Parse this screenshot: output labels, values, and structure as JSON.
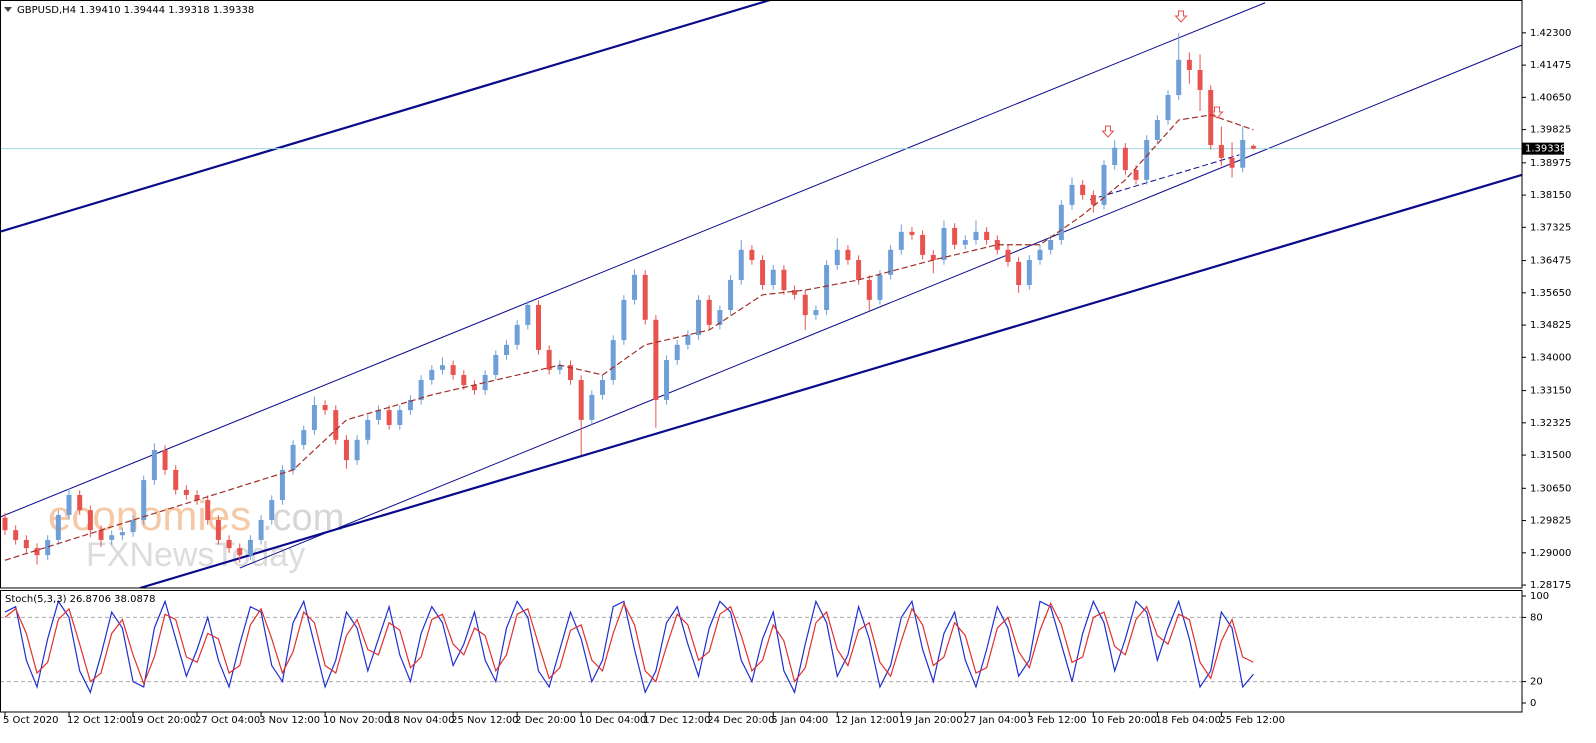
{
  "chart_data": [
    {
      "type": "candlestick",
      "title": "GBPUSD,H4  1.39410 1.39444 1.39318 1.39338",
      "watermarks": [
        "economies",
        ".com",
        "FXNewsToday"
      ],
      "up_color": "#6f9fd8",
      "down_color": "#e8534f",
      "ylim": [
        1.281,
        1.4314
      ],
      "yticks": [
        1.28175,
        {
          "value": 1.29,
          "label": "1.29000"
        },
        1.29825,
        {
          "value": 1.3065,
          "label": "1.30650"
        },
        {
          "value": 1.315,
          "label": "1.31500"
        },
        1.32325,
        {
          "value": 1.3315,
          "label": "1.33150"
        },
        {
          "value": 1.34,
          "label": "1.34000"
        },
        1.34825,
        {
          "value": 1.3565,
          "label": "1.35650"
        },
        1.36475,
        1.37325,
        {
          "value": 1.3815,
          "label": "1.38150"
        },
        1.38975,
        1.39825,
        {
          "value": 1.4065,
          "label": "1.40650"
        },
        1.41475,
        {
          "value": 1.423,
          "label": "1.42300"
        }
      ],
      "current_price": 1.39338,
      "open": [
        1.299,
        1.2958,
        1.2933,
        1.2912,
        1.2894,
        1.2933,
        1.2997,
        1.3048,
        1.3009,
        1.2958,
        1.2933,
        1.2945,
        1.2953,
        1.2984,
        1.3086,
        1.3163,
        1.3112,
        1.3061,
        1.3048,
        1.3035,
        1.2984,
        1.2933,
        1.2912,
        1.2894,
        1.2933,
        1.2984,
        1.3035,
        1.3112,
        1.3176,
        1.3214,
        1.3278,
        1.3265,
        1.3189,
        1.3137,
        1.3189,
        1.324,
        1.3265,
        1.3227,
        1.3265,
        1.3291,
        1.3342,
        1.3368,
        1.338,
        1.3355,
        1.3329,
        1.3316,
        1.3355,
        1.3406,
        1.3432,
        1.3483,
        1.3534,
        1.3419,
        1.3368,
        1.338,
        1.3342,
        1.324,
        1.3304,
        1.3342,
        1.3444,
        1.3547,
        1.3611,
        1.3496,
        1.3291,
        1.3393,
        1.3432,
        1.3457,
        1.3547,
        1.3483,
        1.3521,
        1.3598,
        1.3675,
        1.3649,
        1.3585,
        1.3624,
        1.3572,
        1.356,
        1.3508,
        1.3521,
        1.3636,
        1.3675,
        1.3649,
        1.3598,
        1.3547,
        1.3611,
        1.3675,
        1.3721,
        1.3713,
        1.3662,
        1.3649,
        1.3731,
        1.3688,
        1.37,
        1.3721,
        1.37,
        1.3675,
        1.3644,
        1.3585,
        1.3649,
        1.3675,
        1.37,
        1.379,
        1.3841,
        1.3815,
        1.379,
        1.3892,
        1.3936,
        1.3879,
        1.3854,
        1.3956,
        1.4007,
        1.4071,
        1.4161,
        1.4135,
        1.4084,
        1.3943,
        1.391,
        1.3885,
        1.3941
      ],
      "high": [
        1.3002,
        1.297,
        1.2945,
        1.2924,
        1.2945,
        1.3009,
        1.3065,
        1.306,
        1.3021,
        1.297,
        1.2957,
        1.2965,
        1.2996,
        1.3098,
        1.318,
        1.3175,
        1.3124,
        1.3073,
        1.306,
        1.3047,
        1.2996,
        1.2945,
        1.2924,
        1.2945,
        1.2996,
        1.3047,
        1.3124,
        1.3188,
        1.3226,
        1.33,
        1.329,
        1.3277,
        1.3201,
        1.3201,
        1.3252,
        1.3277,
        1.3277,
        1.3277,
        1.3303,
        1.3354,
        1.338,
        1.34,
        1.3392,
        1.3367,
        1.3341,
        1.3367,
        1.3418,
        1.3444,
        1.3495,
        1.3545,
        1.3546,
        1.3431,
        1.3392,
        1.3392,
        1.3354,
        1.3316,
        1.3354,
        1.3456,
        1.3559,
        1.3625,
        1.3623,
        1.3508,
        1.3405,
        1.3444,
        1.3469,
        1.3559,
        1.3559,
        1.3533,
        1.361,
        1.37,
        1.3687,
        1.3661,
        1.3636,
        1.3636,
        1.3584,
        1.3572,
        1.3533,
        1.3648,
        1.3705,
        1.3687,
        1.3661,
        1.361,
        1.3623,
        1.3687,
        1.374,
        1.3733,
        1.3725,
        1.3674,
        1.375,
        1.3743,
        1.3712,
        1.375,
        1.3733,
        1.3712,
        1.3687,
        1.3656,
        1.3661,
        1.3687,
        1.3712,
        1.3802,
        1.386,
        1.3853,
        1.3827,
        1.3904,
        1.3955,
        1.3948,
        1.3891,
        1.3968,
        1.4019,
        1.4083,
        1.423,
        1.418,
        1.4175,
        1.4096,
        1.399,
        1.395,
        1.399,
        1.39444
      ],
      "low": [
        1.2946,
        1.2921,
        1.29,
        1.287,
        1.2882,
        1.2921,
        1.2985,
        1.2997,
        1.294,
        1.2915,
        1.2921,
        1.2933,
        1.2941,
        1.2972,
        1.3074,
        1.31,
        1.3049,
        1.3036,
        1.3023,
        1.2972,
        1.2921,
        1.29,
        1.2875,
        1.2882,
        1.2921,
        1.2972,
        1.3023,
        1.31,
        1.3164,
        1.3202,
        1.3253,
        1.3177,
        1.3115,
        1.3125,
        1.3177,
        1.3228,
        1.3215,
        1.3215,
        1.3253,
        1.3279,
        1.333,
        1.3356,
        1.3343,
        1.3317,
        1.3304,
        1.3304,
        1.3343,
        1.3394,
        1.342,
        1.3471,
        1.3407,
        1.3356,
        1.3356,
        1.333,
        1.315,
        1.3228,
        1.3292,
        1.333,
        1.3432,
        1.3535,
        1.3484,
        1.322,
        1.3279,
        1.3381,
        1.342,
        1.3445,
        1.3471,
        1.3471,
        1.3509,
        1.3586,
        1.3637,
        1.3573,
        1.3573,
        1.356,
        1.3548,
        1.347,
        1.3496,
        1.3509,
        1.3624,
        1.3637,
        1.3586,
        1.352,
        1.3535,
        1.3599,
        1.3663,
        1.3701,
        1.365,
        1.3615,
        1.3637,
        1.3676,
        1.3676,
        1.3688,
        1.3688,
        1.3663,
        1.3632,
        1.3565,
        1.3573,
        1.3637,
        1.3663,
        1.3688,
        1.3778,
        1.3803,
        1.377,
        1.3778,
        1.388,
        1.3867,
        1.3842,
        1.3842,
        1.3944,
        1.3995,
        1.4059,
        1.41,
        1.403,
        1.3931,
        1.389,
        1.386,
        1.3873,
        1.39318
      ],
      "close": [
        1.2958,
        1.2933,
        1.2912,
        1.2894,
        1.2933,
        1.2997,
        1.3048,
        1.3009,
        1.2958,
        1.2933,
        1.2945,
        1.2953,
        1.2984,
        1.3086,
        1.3163,
        1.3112,
        1.3061,
        1.3048,
        1.3035,
        1.2984,
        1.2933,
        1.2912,
        1.2894,
        1.2933,
        1.2984,
        1.3035,
        1.3112,
        1.3176,
        1.3214,
        1.3278,
        1.3265,
        1.3189,
        1.3137,
        1.3189,
        1.324,
        1.3265,
        1.3227,
        1.3265,
        1.3291,
        1.3342,
        1.3368,
        1.338,
        1.3355,
        1.3329,
        1.3316,
        1.3355,
        1.3406,
        1.3432,
        1.3483,
        1.3534,
        1.3419,
        1.3368,
        1.338,
        1.3342,
        1.324,
        1.3304,
        1.3342,
        1.3444,
        1.3547,
        1.3611,
        1.3496,
        1.3291,
        1.3393,
        1.3432,
        1.3457,
        1.3547,
        1.3483,
        1.3521,
        1.3598,
        1.3675,
        1.3649,
        1.3585,
        1.3624,
        1.3572,
        1.356,
        1.3508,
        1.3521,
        1.3636,
        1.3675,
        1.3649,
        1.3598,
        1.3547,
        1.3611,
        1.3675,
        1.3721,
        1.3713,
        1.3662,
        1.3649,
        1.3731,
        1.3688,
        1.37,
        1.3721,
        1.37,
        1.3675,
        1.3644,
        1.3585,
        1.3649,
        1.3675,
        1.37,
        1.379,
        1.3841,
        1.3815,
        1.379,
        1.3892,
        1.3936,
        1.3879,
        1.3854,
        1.3956,
        1.4007,
        1.4071,
        1.4161,
        1.4135,
        1.4084,
        1.3943,
        1.391,
        1.3885,
        1.3956,
        1.39338
      ],
      "ma": {
        "color": "#a0302a",
        "x": [
          0,
          9,
          18,
          27,
          32,
          40,
          46,
          52,
          56,
          60,
          66,
          71,
          75,
          80,
          87,
          93,
          97,
          101,
          105,
          110,
          113,
          117
        ],
        "values": [
          1.2881,
          1.2958,
          1.3035,
          1.3112,
          1.324,
          1.3304,
          1.3342,
          1.338,
          1.3355,
          1.3432,
          1.347,
          1.356,
          1.3572,
          1.3598,
          1.3649,
          1.3688,
          1.3688,
          1.3764,
          1.3854,
          1.4007,
          1.402,
          1.3982
        ]
      },
      "trendlines": [
        {
          "color": "#0a0a8c",
          "style": "thick",
          "x": [
            -0.5,
            71.7
          ],
          "y": [
            1.3721,
            1.4314
          ]
        },
        {
          "color": "#0a0a8c",
          "style": "thin",
          "x": [
            -0.5,
            118.1
          ],
          "y": [
            1.2991,
            1.4307
          ]
        },
        {
          "color": "#0a0a8c",
          "style": "thin",
          "x": [
            22.0,
            142.2
          ],
          "y": [
            1.2861,
            1.4199
          ]
        },
        {
          "color": "#0a0a8c",
          "style": "thick",
          "x": [
            12.65,
            142.2
          ],
          "y": [
            1.281,
            1.3867
          ]
        },
        {
          "color": "#0a0a8c",
          "style": "dashed",
          "x": [
            101.7,
            115.7
          ],
          "y": [
            1.3803,
            1.3918
          ]
        }
      ]
    },
    {
      "type": "line",
      "title": "Stoch(5,3,3) 26.8706 38.0878",
      "x": [
        "5 Oct 2020",
        null,
        null,
        null,
        null,
        null,
        "12 Oct 12:00",
        null,
        null,
        null,
        null,
        null,
        "19 Oct 20:00",
        null,
        null,
        null,
        null,
        null,
        "27 Oct 04:00",
        null,
        null,
        null,
        null,
        null,
        "3 Nov 12:00",
        null,
        null,
        null,
        null,
        null,
        "10 Nov 20:00",
        null,
        null,
        null,
        null,
        null,
        "18 Nov 04:00",
        null,
        null,
        null,
        null,
        null,
        "25 Nov 12:00",
        null,
        null,
        null,
        null,
        null,
        "2 Dec 20:00",
        null,
        null,
        null,
        null,
        null,
        "10 Dec 04:00",
        null,
        null,
        null,
        null,
        null,
        "17 Dec 12:00",
        null,
        null,
        null,
        null,
        null,
        "24 Dec 20:00",
        null,
        null,
        null,
        null,
        null,
        "5 Jan 04:00",
        null,
        null,
        null,
        null,
        null,
        "12 Jan 12:00",
        null,
        null,
        null,
        null,
        null,
        "19 Jan 20:00",
        null,
        null,
        null,
        null,
        null,
        "27 Jan 04:00",
        null,
        null,
        null,
        null,
        null,
        "3 Feb 12:00",
        null,
        null,
        null,
        null,
        null,
        "10 Feb 20:00",
        null,
        null,
        null,
        null,
        null,
        "18 Feb 04:00",
        null,
        null,
        null,
        null,
        null,
        "25 Feb 12:00",
        null,
        null,
        null
      ],
      "ylim": [
        0,
        100
      ],
      "yticks": [
        0,
        20,
        80,
        100
      ],
      "levels": [
        20,
        80
      ],
      "series": [
        {
          "color": "#1f2fd0",
          "values": [
            85,
            90,
            40,
            15,
            60,
            95,
            80,
            30,
            10,
            45,
            85,
            70,
            20,
            15,
            70,
            95,
            60,
            25,
            50,
            80,
            40,
            15,
            55,
            90,
            85,
            35,
            20,
            75,
            95,
            55,
            15,
            40,
            85,
            70,
            30,
            60,
            90,
            45,
            20,
            65,
            90,
            75,
            35,
            55,
            85,
            40,
            20,
            70,
            95,
            80,
            30,
            15,
            50,
            85,
            60,
            20,
            40,
            90,
            95,
            50,
            10,
            30,
            75,
            90,
            55,
            25,
            70,
            95,
            85,
            40,
            20,
            60,
            85,
            30,
            10,
            55,
            95,
            75,
            25,
            45,
            90,
            60,
            15,
            35,
            80,
            95,
            50,
            20,
            65,
            85,
            40,
            15,
            50,
            90,
            70,
            25,
            40,
            95,
            90,
            55,
            20,
            65,
            95,
            75,
            30,
            60,
            95,
            85,
            40,
            70,
            95,
            60,
            15,
            30,
            85,
            70,
            15,
            26.8706
          ]
        },
        {
          "color": "#e03030",
          "values": [
            80,
            88,
            65,
            28,
            38,
            78,
            88,
            55,
            20,
            28,
            65,
            78,
            45,
            18,
            43,
            83,
            78,
            43,
            38,
            65,
            60,
            28,
            35,
            73,
            88,
            60,
            28,
            48,
            85,
            75,
            35,
            28,
            63,
            78,
            50,
            45,
            75,
            68,
            33,
            43,
            78,
            83,
            55,
            45,
            70,
            63,
            30,
            45,
            83,
            88,
            55,
            23,
            33,
            68,
            73,
            40,
            30,
            65,
            93,
            73,
            30,
            20,
            53,
            83,
            73,
            40,
            48,
            83,
            90,
            63,
            30,
            40,
            73,
            58,
            20,
            33,
            75,
            85,
            50,
            35,
            68,
            75,
            38,
            25,
            58,
            88,
            73,
            35,
            43,
            75,
            63,
            28,
            33,
            70,
            80,
            48,
            33,
            68,
            93,
            73,
            38,
            43,
            80,
            85,
            53,
            45,
            78,
            90,
            63,
            55,
            83,
            78,
            38,
            23,
            58,
            78,
            43,
            38.0878
          ]
        }
      ]
    }
  ]
}
